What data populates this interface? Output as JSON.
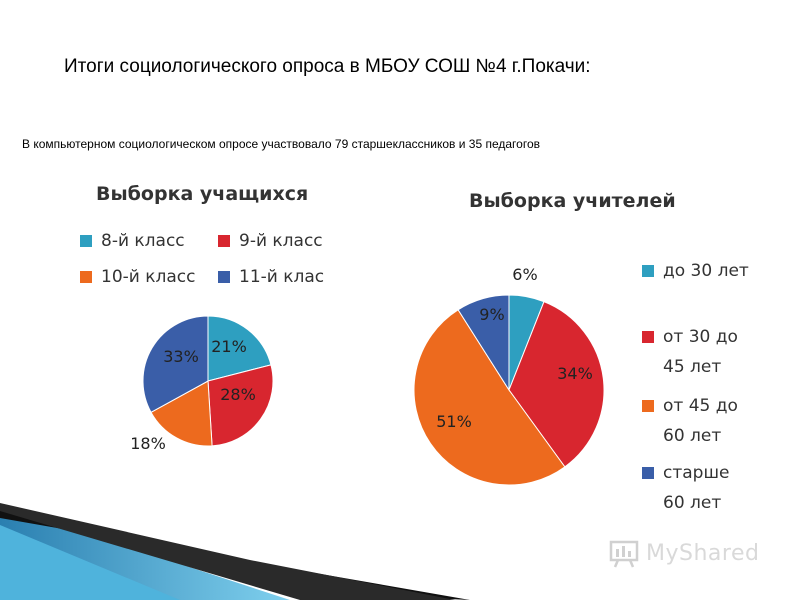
{
  "slide": {
    "title": "Итоги социологического опроса в МБОУ СОШ №4 г.Покачи:",
    "intro": "В компьютерном социологическом опросе участвовало 79 старшеклассников и 35 педагогов"
  },
  "watermark": {
    "icon": "myshared-logo-icon",
    "text": "MyShared"
  },
  "chart_data": [
    {
      "type": "pie",
      "title": "Выборка учащихся",
      "categories": [
        "8-й класс",
        "9-й класс",
        "10-й класс",
        "11-й клас"
      ],
      "values": [
        21,
        28,
        18,
        33
      ],
      "labels": [
        "21%",
        "28%",
        "18%",
        "33%"
      ],
      "colors": [
        "#2e9fc0",
        "#d8262f",
        "#ed6a1e",
        "#3a5ea8"
      ],
      "legend": "top"
    },
    {
      "type": "pie",
      "title": "Выборка учителей",
      "categories": [
        "до 30 лет",
        "от 30 до\n45 лет",
        "от 45 до\n60 лет",
        "старше\n60 лет"
      ],
      "values": [
        6,
        34,
        51,
        9
      ],
      "labels": [
        "6%",
        "34%",
        "51%",
        "9%"
      ],
      "colors": [
        "#2e9fc0",
        "#d8262f",
        "#ed6a1e",
        "#3a5ea8"
      ],
      "legend": "right"
    }
  ]
}
